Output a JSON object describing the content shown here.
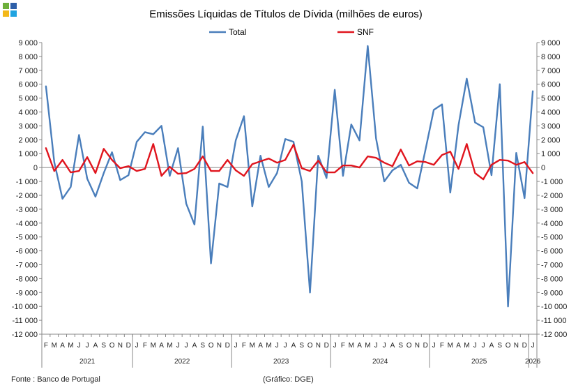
{
  "logo": {
    "colors": [
      "#6DAF3A",
      "#2E5FA8",
      "#F3B81A",
      "#1FA3E0"
    ]
  },
  "footer": {
    "source": "Fonte : Banco de Portugal",
    "credit": "(Gráfico: DGE)"
  },
  "chart_data": {
    "type": "line",
    "title": "Emissões Líquidas de Títulos de Dívida (milhões de euros)",
    "ylim": [
      -12000,
      9000
    ],
    "y_tick_step": 1000,
    "y_tick_labels": [
      "9 000",
      "8 000",
      "7 000",
      "6 000",
      "5 000",
      "4 000",
      "3 000",
      "2 000",
      "1 000",
      "0",
      "-1 000",
      "-2 000",
      "-3 000",
      "-4 000",
      "-5 000",
      "-6 000",
      "-7 000",
      "-8 000",
      "-9 000",
      "-10 000",
      "-11 000",
      "-12 000"
    ],
    "grid": false,
    "legend_position": "top",
    "month_labels": [
      "F",
      "M",
      "A",
      "M",
      "J",
      "J",
      "A",
      "S",
      "O",
      "N",
      "D",
      "J",
      "F",
      "M",
      "A",
      "M",
      "J",
      "J",
      "A",
      "S",
      "O",
      "N",
      "D",
      "J",
      "F",
      "M",
      "A",
      "M",
      "J",
      "J",
      "A",
      "S",
      "O",
      "N",
      "D",
      "J",
      "F",
      "M",
      "A",
      "M",
      "J",
      "J",
      "A",
      "S",
      "O",
      "N",
      "D",
      "J",
      "F",
      "M",
      "A",
      "M",
      "J",
      "J",
      "A",
      "S",
      "O",
      "N",
      "D",
      "J"
    ],
    "year_labels": [
      {
        "label": "2021",
        "start": 0,
        "count": 11
      },
      {
        "label": "2022",
        "start": 11,
        "count": 12
      },
      {
        "label": "2023",
        "start": 23,
        "count": 12
      },
      {
        "label": "2024",
        "start": 35,
        "count": 12
      },
      {
        "label": "2025",
        "start": 47,
        "count": 12
      },
      {
        "label": "2026",
        "start": 59,
        "count": 1
      }
    ],
    "series": [
      {
        "name": "Total",
        "color": "#4A7EBB",
        "values": [
          5850,
          400,
          -2250,
          -1400,
          2350,
          -800,
          -2100,
          -400,
          1100,
          -900,
          -550,
          1850,
          2550,
          2400,
          3000,
          -600,
          1400,
          -2600,
          -4100,
          2950,
          -6900,
          -1150,
          -1400,
          1950,
          3700,
          -2800,
          850,
          -1400,
          -400,
          2050,
          1850,
          -1000,
          -9000,
          850,
          -750,
          5600,
          -600,
          3100,
          1950,
          8750,
          2100,
          -1000,
          -200,
          200,
          -1100,
          -1500,
          1300,
          4150,
          4550,
          -1800,
          3050,
          6400,
          3250,
          2900,
          -550,
          6000,
          -10000,
          1050,
          -2200,
          5500
        ]
      },
      {
        "name": "SNF",
        "color": "#E0151E",
        "values": [
          1400,
          -250,
          550,
          -350,
          -250,
          750,
          -400,
          1350,
          550,
          -50,
          100,
          -250,
          -100,
          1700,
          -600,
          50,
          -450,
          -400,
          -100,
          800,
          -250,
          -250,
          550,
          -200,
          -600,
          250,
          450,
          650,
          350,
          550,
          1650,
          -50,
          -250,
          500,
          -350,
          -350,
          150,
          150,
          0,
          800,
          700,
          350,
          100,
          1300,
          150,
          450,
          400,
          200,
          900,
          1150,
          -100,
          1700,
          -400,
          -850,
          200,
          550,
          500,
          200,
          400,
          -400
        ]
      }
    ]
  }
}
